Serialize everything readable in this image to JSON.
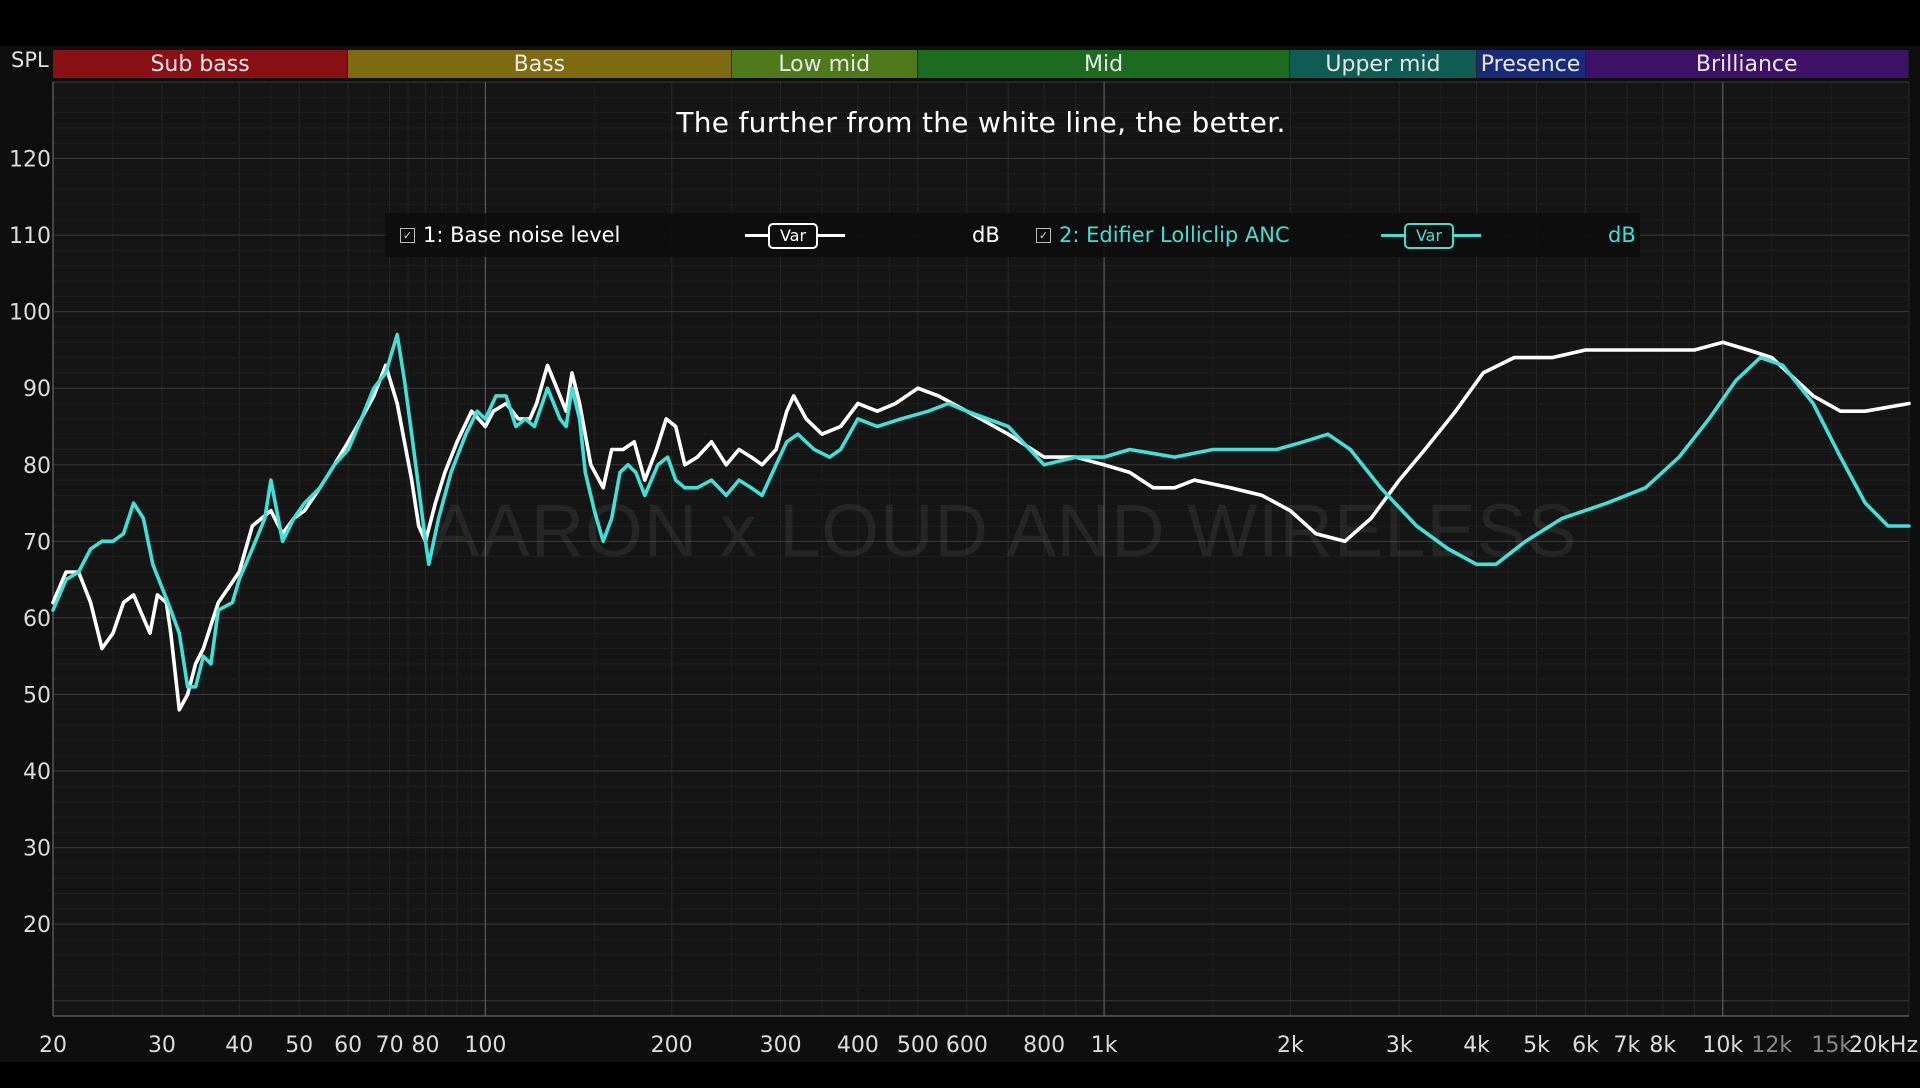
{
  "header": {
    "spl_label": "SPL"
  },
  "bands": [
    {
      "label": "Sub bass",
      "color": "#8b1016",
      "from": 20,
      "to": 60
    },
    {
      "label": "Bass",
      "color": "#7d6a11",
      "from": 60,
      "to": 250
    },
    {
      "label": "Low mid",
      "color": "#4f7a1b",
      "from": 250,
      "to": 500
    },
    {
      "label": "Mid",
      "color": "#1d6b1f",
      "from": 500,
      "to": 2000
    },
    {
      "label": "Upper mid",
      "color": "#0f5c55",
      "from": 2000,
      "to": 4000
    },
    {
      "label": "Presence",
      "color": "#1a2a7a",
      "from": 4000,
      "to": 6000
    },
    {
      "label": "Brilliance",
      "color": "#3d1266",
      "from": 6000,
      "to": 20000
    }
  ],
  "subtitle": "The further from the white line, the better.",
  "watermark": "AARON x LOUD AND WIRELESS",
  "legend": [
    {
      "checked": "✓",
      "label": "1: Base noise level",
      "smoothing": "Var",
      "unit": "dB",
      "color": "#ffffff"
    },
    {
      "checked": "✓",
      "label": "2: Edifier Lolliclip ANC",
      "smoothing": "Var",
      "unit": "dB",
      "color": "#3fe0d8"
    }
  ],
  "chart_data": {
    "type": "line",
    "x_scale": "log",
    "xlim": [
      20,
      20000
    ],
    "ylim": [
      8,
      130
    ],
    "yticks": [
      20,
      30,
      40,
      50,
      60,
      70,
      80,
      90,
      100,
      110,
      120
    ],
    "xticks": [
      {
        "v": 20,
        "label": "20"
      },
      {
        "v": 30,
        "label": "30"
      },
      {
        "v": 40,
        "label": "40"
      },
      {
        "v": 50,
        "label": "50"
      },
      {
        "v": 60,
        "label": "60"
      },
      {
        "v": 70,
        "label": "70"
      },
      {
        "v": 80,
        "label": "80"
      },
      {
        "v": 100,
        "label": "100"
      },
      {
        "v": 200,
        "label": "200"
      },
      {
        "v": 300,
        "label": "300"
      },
      {
        "v": 400,
        "label": "400"
      },
      {
        "v": 500,
        "label": "500"
      },
      {
        "v": 600,
        "label": "600"
      },
      {
        "v": 800,
        "label": "800"
      },
      {
        "v": 1000,
        "label": "1k"
      },
      {
        "v": 2000,
        "label": "2k"
      },
      {
        "v": 3000,
        "label": "3k"
      },
      {
        "v": 4000,
        "label": "4k"
      },
      {
        "v": 5000,
        "label": "5k"
      },
      {
        "v": 6000,
        "label": "6k"
      },
      {
        "v": 7000,
        "label": "7k"
      },
      {
        "v": 8000,
        "label": "8k"
      },
      {
        "v": 10000,
        "label": "10k"
      },
      {
        "v": 12000,
        "label": "12k",
        "dim": true
      },
      {
        "v": 15000,
        "label": "15k",
        "dim": true
      },
      {
        "v": 20000,
        "label": "20kHz"
      }
    ],
    "grid": true,
    "series": [
      {
        "name": "1: Base noise level",
        "color": "#ffffff",
        "points": [
          [
            20,
            62
          ],
          [
            21,
            66
          ],
          [
            22,
            66
          ],
          [
            23,
            62
          ],
          [
            24,
            56
          ],
          [
            25,
            58
          ],
          [
            26,
            62
          ],
          [
            27,
            63
          ],
          [
            28,
            60
          ],
          [
            28.7,
            58
          ],
          [
            29.5,
            63
          ],
          [
            30.5,
            62
          ],
          [
            31,
            58
          ],
          [
            32,
            48
          ],
          [
            33,
            50
          ],
          [
            34,
            54
          ],
          [
            35,
            56
          ],
          [
            37,
            62
          ],
          [
            40,
            66
          ],
          [
            42,
            72
          ],
          [
            45,
            74
          ],
          [
            47,
            71
          ],
          [
            49,
            73
          ],
          [
            51,
            74
          ],
          [
            54,
            77
          ],
          [
            57,
            80
          ],
          [
            60,
            83
          ],
          [
            63,
            86
          ],
          [
            66,
            89
          ],
          [
            69,
            93
          ],
          [
            72,
            88
          ],
          [
            76,
            78
          ],
          [
            78,
            72
          ],
          [
            80,
            70
          ],
          [
            83,
            75
          ],
          [
            86,
            79
          ],
          [
            90,
            83
          ],
          [
            95,
            87
          ],
          [
            100,
            85
          ],
          [
            103,
            87
          ],
          [
            108,
            88
          ],
          [
            113,
            86
          ],
          [
            118,
            86
          ],
          [
            121,
            88
          ],
          [
            126,
            93
          ],
          [
            132,
            89
          ],
          [
            135,
            87
          ],
          [
            138,
            92
          ],
          [
            142,
            88
          ],
          [
            148,
            80
          ],
          [
            155,
            77
          ],
          [
            160,
            82
          ],
          [
            167,
            82
          ],
          [
            174,
            83
          ],
          [
            181,
            78
          ],
          [
            189,
            82
          ],
          [
            196,
            86
          ],
          [
            203,
            85
          ],
          [
            210,
            80
          ],
          [
            220,
            81
          ],
          [
            232,
            83
          ],
          [
            245,
            80
          ],
          [
            257,
            82
          ],
          [
            269,
            81
          ],
          [
            280,
            80
          ],
          [
            295,
            82
          ],
          [
            307,
            87
          ],
          [
            315,
            89
          ],
          [
            330,
            86
          ],
          [
            350,
            84
          ],
          [
            375,
            85
          ],
          [
            400,
            88
          ],
          [
            430,
            87
          ],
          [
            460,
            88
          ],
          [
            500,
            90
          ],
          [
            540,
            89
          ],
          [
            600,
            87
          ],
          [
            700,
            84
          ],
          [
            800,
            81
          ],
          [
            900,
            81
          ],
          [
            1000,
            80
          ],
          [
            1100,
            79
          ],
          [
            1200,
            77
          ],
          [
            1300,
            77
          ],
          [
            1400,
            78
          ],
          [
            1600,
            77
          ],
          [
            1800,
            76
          ],
          [
            2000,
            74
          ],
          [
            2200,
            71
          ],
          [
            2450,
            70
          ],
          [
            2700,
            73
          ],
          [
            3000,
            78
          ],
          [
            3300,
            82
          ],
          [
            3700,
            87
          ],
          [
            4100,
            92
          ],
          [
            4600,
            94
          ],
          [
            5300,
            94
          ],
          [
            6000,
            95
          ],
          [
            7000,
            95
          ],
          [
            8000,
            95
          ],
          [
            9000,
            95
          ],
          [
            10000,
            96
          ],
          [
            11000,
            95
          ],
          [
            12000,
            94
          ],
          [
            14000,
            89
          ],
          [
            15500,
            87
          ],
          [
            17000,
            87
          ],
          [
            20000,
            88
          ]
        ]
      },
      {
        "name": "2: Edifier Lolliclip ANC",
        "color": "#3fe0d8",
        "points": [
          [
            20,
            61
          ],
          [
            21,
            65
          ],
          [
            22,
            66
          ],
          [
            23,
            69
          ],
          [
            24,
            70
          ],
          [
            25,
            70
          ],
          [
            26,
            71
          ],
          [
            27,
            75
          ],
          [
            28,
            73
          ],
          [
            29,
            67
          ],
          [
            30,
            64
          ],
          [
            31,
            61
          ],
          [
            32,
            58
          ],
          [
            33,
            51
          ],
          [
            34,
            51
          ],
          [
            35,
            55
          ],
          [
            36,
            54
          ],
          [
            37,
            61
          ],
          [
            39,
            62
          ],
          [
            40,
            65
          ],
          [
            42,
            69
          ],
          [
            44,
            73
          ],
          [
            45,
            78
          ],
          [
            47,
            70
          ],
          [
            49,
            73
          ],
          [
            51,
            75
          ],
          [
            54,
            77
          ],
          [
            57,
            80
          ],
          [
            60,
            82
          ],
          [
            63,
            86
          ],
          [
            66,
            90
          ],
          [
            69,
            92
          ],
          [
            72,
            97
          ],
          [
            74,
            91
          ],
          [
            76,
            84
          ],
          [
            78,
            77
          ],
          [
            80,
            70
          ],
          [
            81,
            67
          ],
          [
            84,
            73
          ],
          [
            88,
            79
          ],
          [
            93,
            84
          ],
          [
            97,
            87
          ],
          [
            100,
            86
          ],
          [
            104,
            89
          ],
          [
            108,
            89
          ],
          [
            112,
            85
          ],
          [
            116,
            86
          ],
          [
            120,
            85
          ],
          [
            126,
            90
          ],
          [
            132,
            86
          ],
          [
            135,
            85
          ],
          [
            138,
            90
          ],
          [
            142,
            86
          ],
          [
            145,
            79
          ],
          [
            150,
            74
          ],
          [
            155,
            70
          ],
          [
            160,
            73
          ],
          [
            165,
            79
          ],
          [
            170,
            80
          ],
          [
            175,
            79
          ],
          [
            181,
            76
          ],
          [
            190,
            80
          ],
          [
            197,
            81
          ],
          [
            203,
            78
          ],
          [
            210,
            77
          ],
          [
            220,
            77
          ],
          [
            232,
            78
          ],
          [
            245,
            76
          ],
          [
            257,
            78
          ],
          [
            269,
            77
          ],
          [
            280,
            76
          ],
          [
            295,
            80
          ],
          [
            307,
            83
          ],
          [
            320,
            84
          ],
          [
            340,
            82
          ],
          [
            360,
            81
          ],
          [
            375,
            82
          ],
          [
            400,
            86
          ],
          [
            430,
            85
          ],
          [
            470,
            86
          ],
          [
            520,
            87
          ],
          [
            560,
            88
          ],
          [
            600,
            87
          ],
          [
            700,
            85
          ],
          [
            800,
            80
          ],
          [
            900,
            81
          ],
          [
            1000,
            81
          ],
          [
            1100,
            82
          ],
          [
            1300,
            81
          ],
          [
            1500,
            82
          ],
          [
            1700,
            82
          ],
          [
            1900,
            82
          ],
          [
            2100,
            83
          ],
          [
            2300,
            84
          ],
          [
            2500,
            82
          ],
          [
            2800,
            77
          ],
          [
            3200,
            72
          ],
          [
            3600,
            69
          ],
          [
            4000,
            67
          ],
          [
            4300,
            67
          ],
          [
            4800,
            70
          ],
          [
            5500,
            73
          ],
          [
            6500,
            75
          ],
          [
            7500,
            77
          ],
          [
            8500,
            81
          ],
          [
            9500,
            86
          ],
          [
            10500,
            91
          ],
          [
            11500,
            94
          ],
          [
            12500,
            93
          ],
          [
            14000,
            88
          ],
          [
            15500,
            81
          ],
          [
            17000,
            75
          ],
          [
            18500,
            72
          ],
          [
            20000,
            72
          ]
        ]
      }
    ]
  }
}
